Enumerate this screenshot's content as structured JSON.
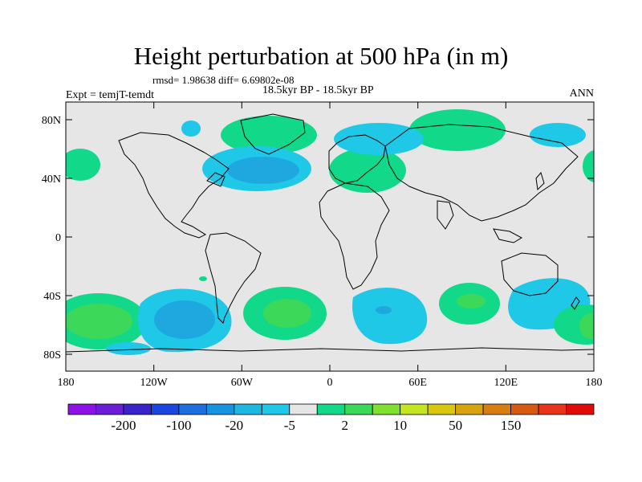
{
  "title": "Height perturbation at 500 hPa (in m)",
  "stats_line": "rmsd= 1.98638  diff= 6.69802e-08",
  "experiment_label": "Expt = temjT-temdt",
  "period_label": "18.5kyr BP - 18.5kyr BP",
  "season_label": "ANN",
  "x_ticks": [
    "180",
    "120W",
    "60W",
    "0",
    "60E",
    "120E",
    "180"
  ],
  "y_ticks": [
    "80N",
    "40N",
    "0",
    "40S",
    "80S"
  ],
  "colorbar": {
    "colors": [
      "#8c12e6",
      "#6a1fd6",
      "#3a23c8",
      "#1a46e0",
      "#1d6fe0",
      "#1893e0",
      "#1fb6e0",
      "#1fc8e6",
      "#e6e6e6",
      "#12d98a",
      "#3cd85a",
      "#7fe030",
      "#c4e620",
      "#d7c80f",
      "#d7a30f",
      "#d77d12",
      "#d75a12",
      "#e8341a",
      "#e00a0a"
    ],
    "labels": [
      "-200",
      "-100",
      "-20",
      "-5",
      "2",
      "10",
      "50",
      "150"
    ],
    "label_after_box": [
      1,
      3,
      5,
      7,
      9,
      11,
      13,
      15
    ]
  },
  "map": {
    "background": "#e6e6e6",
    "contour_colors": {
      "blue_light": "#1fc8e6",
      "blue_mid": "#1fa8e0",
      "green": "#12d98a",
      "green_dark": "#3cd85a"
    }
  }
}
